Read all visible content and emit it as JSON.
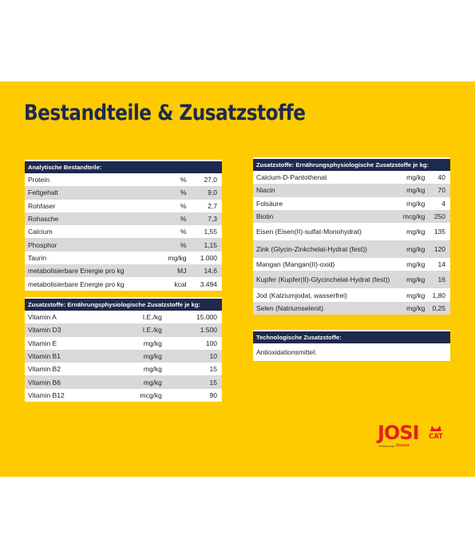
{
  "title": "Bestandteile & Zusatzstoffe",
  "analytical": {
    "header": "Analytische Bestandteile:",
    "rows": [
      {
        "name": "Protein",
        "unit": "%",
        "value": "27,0"
      },
      {
        "name": "Fettgehalt",
        "unit": "%",
        "value": "9,0"
      },
      {
        "name": "Rohfaser",
        "unit": "%",
        "value": "2,7"
      },
      {
        "name": "Rohasche",
        "unit": "%",
        "value": "7,3"
      },
      {
        "name": "Calcium",
        "unit": "%",
        "value": "1,55"
      },
      {
        "name": "Phosphor",
        "unit": "%",
        "value": "1,15"
      },
      {
        "name": "Taurin",
        "unit": "mg/kg",
        "value": "1.000"
      },
      {
        "name": "metabolisierbare Energie pro kg",
        "unit": "MJ",
        "value": "14,6"
      },
      {
        "name": "metabolisierbare Energie pro kg",
        "unit": "kcal",
        "value": "3.494"
      }
    ]
  },
  "additives_vitamins": {
    "header": "Zusatzstoffe: Ernährungsphysiologische Zusatzstoffe je kg:",
    "rows": [
      {
        "name": "Vitamin A",
        "unit": "I.E./kg",
        "value": "15.000"
      },
      {
        "name": "Vitamin D3",
        "unit": "I.E./kg",
        "value": "1.500"
      },
      {
        "name": "Vitamin E",
        "unit": "mg/kg",
        "value": "100"
      },
      {
        "name": "Vitamin B1",
        "unit": "mg/kg",
        "value": "10"
      },
      {
        "name": "Vitamin B2",
        "unit": "mg/kg",
        "value": "15"
      },
      {
        "name": "Vitamin B6",
        "unit": "mg/kg",
        "value": "15"
      },
      {
        "name": "Vitamin B12",
        "unit": "mcg/kg",
        "value": "90"
      }
    ]
  },
  "additives_minerals": {
    "header": "Zusatzstoffe: Ernährungsphysiologische Zusatzstoffe je kg:",
    "rows": [
      {
        "name": "Calcium-D-Pantothenat",
        "unit": "mg/kg",
        "value": "40"
      },
      {
        "name": "Niacin",
        "unit": "mg/kg",
        "value": "70"
      },
      {
        "name": "Folsäure",
        "unit": "mg/kg",
        "value": "4"
      },
      {
        "name": "Biotin",
        "unit": "mcg/kg",
        "value": "250"
      },
      {
        "name": "Eisen (Eisen(II)-sulfat-Monohydrat)",
        "unit": "mg/kg",
        "value": "135"
      },
      {
        "name": "Zink (Glycin-Zinkchelat-Hydrat (fest))",
        "unit": "mg/kg",
        "value": "120"
      },
      {
        "name": "Mangan (Mangan(II)-oxid)",
        "unit": "mg/kg",
        "value": "14"
      },
      {
        "name": "Kupfer (Kupfer(II)-Glycinchelat-Hydrat (fest))",
        "unit": "mg/kg",
        "value": "16"
      },
      {
        "name": "Jod (Kalziumjodat, wasserfrei)",
        "unit": "mg/kg",
        "value": "1,80"
      },
      {
        "name": "Selen (Natriumselenit)",
        "unit": "mg/kg",
        "value": "0,25"
      }
    ]
  },
  "technological": {
    "header": "Technologische Zusatzstoffe:",
    "text": "Antioxidationsmittel."
  },
  "logo": {
    "brand": "JOSI",
    "cat_line1": "CAT",
    "powered": "Powered by",
    "josera": "Josera"
  },
  "colors": {
    "panel": "#fecb00",
    "navy": "#1d2a4d",
    "stripe": "#d9d9d9",
    "brand_red": "#e2231a"
  }
}
